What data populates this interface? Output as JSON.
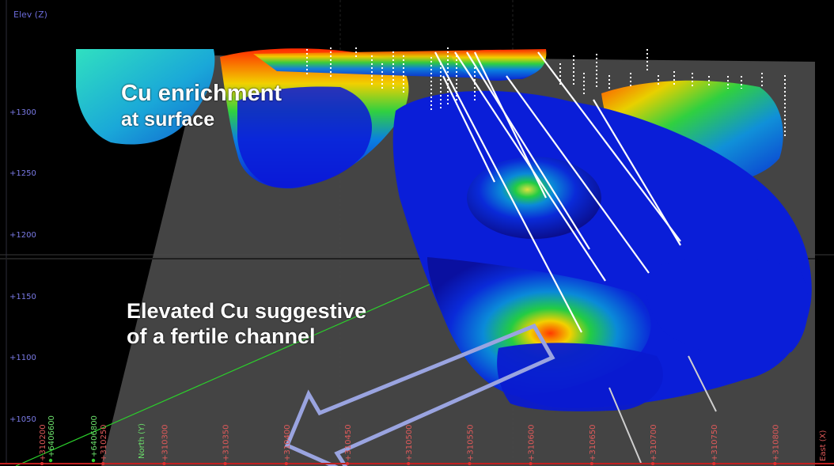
{
  "viewer": {
    "vertical_axis_title": "Elev (Z)",
    "elevation_ticks": [
      "+1300",
      "+1250",
      "+1200",
      "+1150",
      "+1100",
      "+1050"
    ],
    "easting_ticks": [
      "+310200",
      "+310250",
      "+310300",
      "+310350",
      "+310400",
      "+310450",
      "+310500",
      "+310550",
      "+310600",
      "+310650",
      "+310700",
      "+310750",
      "+310800"
    ],
    "northing_ticks": [
      "+6406600",
      "+6406800"
    ],
    "north_axis_label": "North (Y)",
    "east_axis_label": "East (X)",
    "colors": {
      "background": "#000000",
      "section_plane": "#4a4a4a",
      "elevation_labels": "#7a7ae6",
      "easting_labels": "#e05a5a",
      "northing_labels": "#6be06b",
      "annotation_text": "#ffffff",
      "arrow_outline": "#9aa4e0"
    }
  },
  "annotations": {
    "surface_line1": "Cu enrichment",
    "surface_line2": "at surface",
    "channel_line1": "Elevated Cu suggestive",
    "channel_line2": "of a fertile channel"
  }
}
